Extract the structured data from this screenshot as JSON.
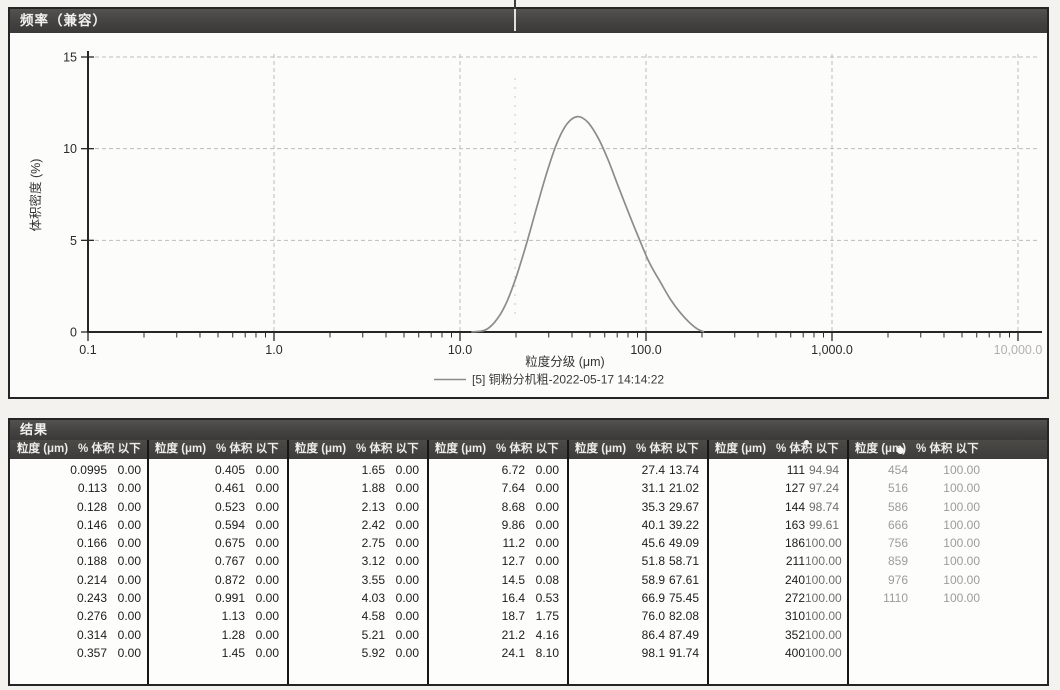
{
  "chart_data": {
    "type": "line",
    "title": "频率（兼容）",
    "xlabel": "粒度分级 (μm)",
    "ylabel": "体积密度 (%)",
    "x_scale": "log",
    "xlim": [
      0.1,
      10000
    ],
    "ylim": [
      0,
      15
    ],
    "yticks": [
      0,
      5,
      10,
      15
    ],
    "xticks": [
      0.1,
      1,
      10,
      100,
      1000,
      10000
    ],
    "xtick_labels": [
      "0.1",
      "1.0",
      "10.0",
      "100.0",
      "1,000.0",
      "10,000.0"
    ],
    "grid": true,
    "legend_position": "bottom-center",
    "series": [
      {
        "name": "[5] 铜粉分机粗-2022-05-17 14:14:22",
        "color": "#8c8c8c",
        "points": [
          [
            11.5,
            0
          ],
          [
            13.6,
            0.1
          ],
          [
            15.4,
            0.55
          ],
          [
            17.5,
            1.45
          ],
          [
            19.9,
            2.9
          ],
          [
            22.6,
            4.7
          ],
          [
            25.7,
            6.7
          ],
          [
            29.2,
            8.65
          ],
          [
            33.2,
            10.3
          ],
          [
            37.6,
            11.35
          ],
          [
            42.8,
            11.75
          ],
          [
            48.6,
            11.45
          ],
          [
            55.2,
            10.6
          ],
          [
            62.8,
            9.35
          ],
          [
            71.2,
            7.9
          ],
          [
            81,
            6.45
          ],
          [
            92.1,
            5.05
          ],
          [
            104,
            3.8
          ],
          [
            119,
            2.75
          ],
          [
            135,
            1.8
          ],
          [
            153,
            1.05
          ],
          [
            174,
            0.45
          ],
          [
            190,
            0.15
          ],
          [
            205,
            0
          ]
        ]
      }
    ]
  },
  "results_table": {
    "title": "结果",
    "size_header": "粒度 (μm)",
    "pct_header": "% 体积 以下",
    "groups": [
      {
        "rows": [
          [
            "0.0995",
            "0.00"
          ],
          [
            "0.113",
            "0.00"
          ],
          [
            "0.128",
            "0.00"
          ],
          [
            "0.146",
            "0.00"
          ],
          [
            "0.166",
            "0.00"
          ],
          [
            "0.188",
            "0.00"
          ],
          [
            "0.214",
            "0.00"
          ],
          [
            "0.243",
            "0.00"
          ],
          [
            "0.276",
            "0.00"
          ],
          [
            "0.314",
            "0.00"
          ],
          [
            "0.357",
            "0.00"
          ]
        ]
      },
      {
        "rows": [
          [
            "0.405",
            "0.00"
          ],
          [
            "0.461",
            "0.00"
          ],
          [
            "0.523",
            "0.00"
          ],
          [
            "0.594",
            "0.00"
          ],
          [
            "0.675",
            "0.00"
          ],
          [
            "0.767",
            "0.00"
          ],
          [
            "0.872",
            "0.00"
          ],
          [
            "0.991",
            "0.00"
          ],
          [
            "1.13",
            "0.00"
          ],
          [
            "1.28",
            "0.00"
          ],
          [
            "1.45",
            "0.00"
          ]
        ]
      },
      {
        "rows": [
          [
            "1.65",
            "0.00"
          ],
          [
            "1.88",
            "0.00"
          ],
          [
            "2.13",
            "0.00"
          ],
          [
            "2.42",
            "0.00"
          ],
          [
            "2.75",
            "0.00"
          ],
          [
            "3.12",
            "0.00"
          ],
          [
            "3.55",
            "0.00"
          ],
          [
            "4.03",
            "0.00"
          ],
          [
            "4.58",
            "0.00"
          ],
          [
            "5.21",
            "0.00"
          ],
          [
            "5.92",
            "0.00"
          ]
        ]
      },
      {
        "rows": [
          [
            "6.72",
            "0.00"
          ],
          [
            "7.64",
            "0.00"
          ],
          [
            "8.68",
            "0.00"
          ],
          [
            "9.86",
            "0.00"
          ],
          [
            "11.2",
            "0.00"
          ],
          [
            "12.7",
            "0.00"
          ],
          [
            "14.5",
            "0.08"
          ],
          [
            "16.4",
            "0.53"
          ],
          [
            "18.7",
            "1.75"
          ],
          [
            "21.2",
            "4.16"
          ],
          [
            "24.1",
            "8.10"
          ]
        ]
      },
      {
        "rows": [
          [
            "27.4",
            "13.74"
          ],
          [
            "31.1",
            "21.02"
          ],
          [
            "35.3",
            "29.67"
          ],
          [
            "40.1",
            "39.22"
          ],
          [
            "45.6",
            "49.09"
          ],
          [
            "51.8",
            "58.71"
          ],
          [
            "58.9",
            "67.61"
          ],
          [
            "66.9",
            "75.45"
          ],
          [
            "76.0",
            "82.08"
          ],
          [
            "86.4",
            "87.49"
          ],
          [
            "98.1",
            "91.74"
          ]
        ]
      },
      {
        "rows": [
          [
            "111",
            "94.94"
          ],
          [
            "127",
            "97.24"
          ],
          [
            "144",
            "98.74"
          ],
          [
            "163",
            "99.61"
          ],
          [
            "186",
            "100.00"
          ],
          [
            "211",
            "100.00"
          ],
          [
            "240",
            "100.00"
          ],
          [
            "272",
            "100.00"
          ],
          [
            "310",
            "100.00"
          ],
          [
            "352",
            "100.00"
          ],
          [
            "400",
            "100.00"
          ]
        ],
        "pct_faded": true
      },
      {
        "rows": [
          [
            "454",
            "100.00"
          ],
          [
            "516",
            "100.00"
          ],
          [
            "586",
            "100.00"
          ],
          [
            "666",
            "100.00"
          ],
          [
            "756",
            "100.00"
          ],
          [
            "859",
            "100.00"
          ],
          [
            "976",
            "100.00"
          ],
          [
            "1110",
            "100.00"
          ]
        ],
        "faded": true
      }
    ]
  },
  "colors": {
    "curve": "#8c8c8c",
    "titlebar": "#434240",
    "grid": "#bdbcb8",
    "axis": "#262626"
  }
}
